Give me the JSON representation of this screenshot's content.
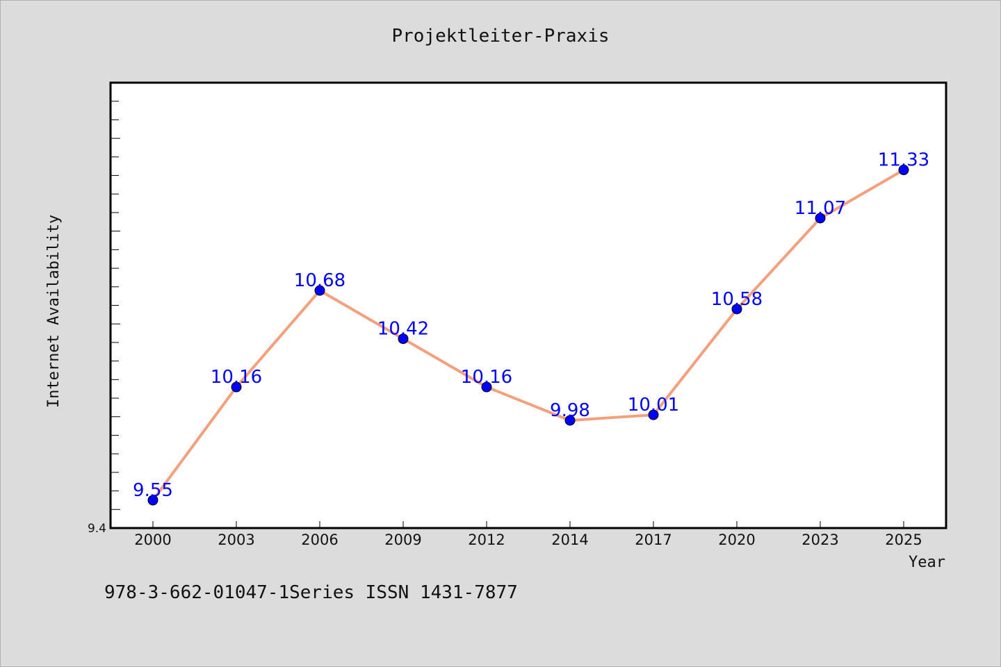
{
  "chart_data": {
    "type": "line",
    "title": "Projektleiter-Praxis",
    "xlabel": "Year",
    "ylabel": "Internet Availability",
    "categories": [
      "2000",
      "2003",
      "2006",
      "2009",
      "2012",
      "2014",
      "2017",
      "2020",
      "2023",
      "2025"
    ],
    "series": [
      {
        "values": [
          9.55,
          10.16,
          10.68,
          10.42,
          10.16,
          9.98,
          10.01,
          10.58,
          11.07,
          11.33
        ],
        "data_labels": [
          "9.55",
          "10.16",
          "10.68",
          "10.42",
          "10.16",
          "9.98",
          "10.01",
          "10.58",
          "11.07",
          "11.33"
        ]
      }
    ],
    "ylim": [
      9.4,
      11.8
    ],
    "yticks_labeled": [
      "9.4"
    ],
    "grid": false,
    "legend": "none",
    "colors": {
      "line": "#f4a07c",
      "marker": "#0000ff",
      "data_label": "#0000ff",
      "plot_background": "#ffffff",
      "page_background": "#dcdcdc"
    }
  },
  "footnote": "978-3-662-01047-1Series ISSN 1431-7877"
}
